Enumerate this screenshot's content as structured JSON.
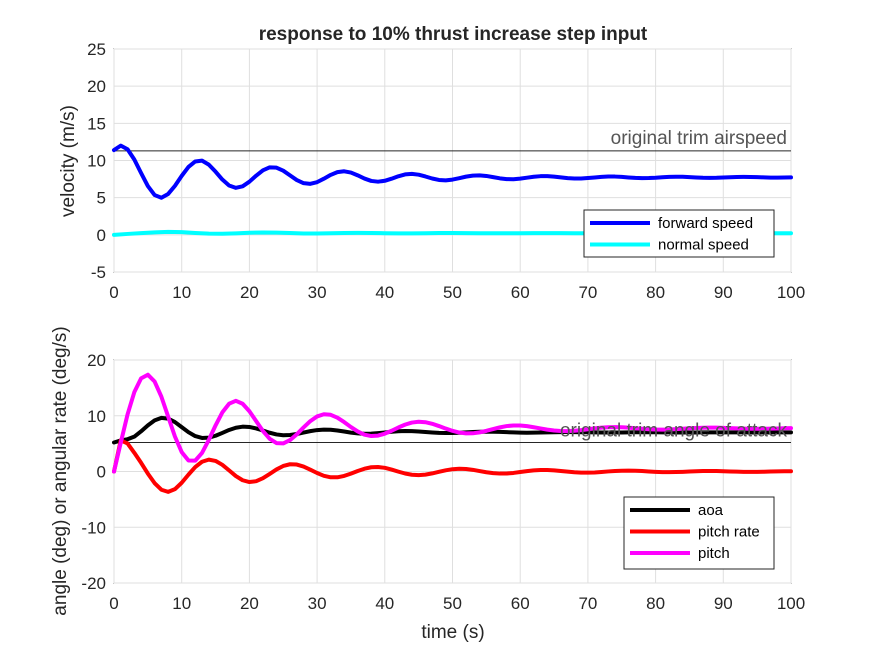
{
  "chart_data": [
    {
      "type": "line",
      "title": "response to 10% thrust increase step input",
      "xlabel": "",
      "ylabel": "velocity (m/s)",
      "xlim": [
        0,
        100
      ],
      "ylim": [
        -5,
        25
      ],
      "xticks": [
        0,
        10,
        20,
        30,
        40,
        50,
        60,
        70,
        80,
        90,
        100
      ],
      "yticks": [
        -5,
        0,
        5,
        10,
        15,
        20,
        25
      ],
      "grid": true,
      "legend_position": "bottom-right",
      "reference_line": {
        "y": 11.3,
        "label": "original trim airspeed",
        "color": "#555555"
      },
      "series": [
        {
          "name": "forward speed",
          "color": "#0000ff",
          "x": [
            0,
            1,
            2,
            3,
            4,
            5,
            6,
            7,
            8,
            9,
            10,
            11,
            12,
            13,
            14,
            15,
            16,
            17,
            18,
            19,
            20,
            21,
            22,
            23,
            24,
            25,
            26,
            27,
            28,
            29,
            30,
            31,
            32,
            33,
            34,
            35,
            36,
            37,
            38,
            39,
            40,
            41,
            42,
            43,
            44,
            45,
            46,
            47,
            48,
            49,
            50,
            51,
            52,
            53,
            54,
            55,
            56,
            57,
            58,
            59,
            60,
            61,
            62,
            63,
            64,
            65,
            66,
            67,
            68,
            69,
            70,
            71,
            72,
            73,
            74,
            75,
            76,
            77,
            78,
            79,
            80,
            81,
            82,
            83,
            84,
            85,
            86,
            87,
            88,
            89,
            90,
            91,
            92,
            93,
            94,
            95,
            96,
            97,
            98,
            99,
            100
          ],
          "values": [
            11.4,
            12.0,
            11.51,
            10.14,
            8.32,
            6.56,
            5.35,
            4.99,
            5.5,
            6.59,
            7.93,
            9.13,
            9.87,
            9.98,
            9.45,
            8.5,
            7.44,
            6.64,
            6.32,
            6.53,
            7.15,
            7.96,
            8.68,
            9.08,
            9.04,
            8.63,
            8.0,
            7.37,
            6.95,
            6.86,
            7.09,
            7.55,
            8.06,
            8.44,
            8.55,
            8.38,
            8.0,
            7.57,
            7.25,
            7.15,
            7.27,
            7.55,
            7.88,
            8.13,
            8.2,
            8.09,
            7.85,
            7.58,
            7.38,
            7.33,
            7.43,
            7.62,
            7.83,
            7.97,
            8.0,
            7.92,
            7.76,
            7.6,
            7.49,
            7.48,
            7.56,
            7.69,
            7.81,
            7.89,
            7.9,
            7.83,
            7.73,
            7.63,
            7.58,
            7.58,
            7.64,
            7.72,
            7.8,
            7.84,
            7.84,
            7.79,
            7.72,
            7.66,
            7.63,
            7.64,
            7.68,
            7.74,
            7.79,
            7.81,
            7.81,
            7.77,
            7.72,
            7.68,
            7.67,
            7.68,
            7.71,
            7.75,
            7.78,
            7.79,
            7.78,
            7.76,
            7.73,
            7.7,
            7.7,
            7.71,
            7.73
          ]
        },
        {
          "name": "normal speed",
          "color": "#00ffff",
          "x": [
            0,
            2,
            4,
            6,
            8,
            10,
            12,
            14,
            16,
            18,
            20,
            22,
            24,
            26,
            28,
            30,
            32,
            34,
            36,
            38,
            40,
            42,
            44,
            46,
            48,
            50,
            52,
            54,
            56,
            58,
            60,
            62,
            64,
            66,
            68,
            70,
            72,
            74,
            76,
            78,
            80,
            82,
            84,
            86,
            88,
            90,
            92,
            94,
            96,
            98,
            100
          ],
          "values": [
            0.0,
            0.12,
            0.23,
            0.33,
            0.39,
            0.36,
            0.25,
            0.16,
            0.15,
            0.2,
            0.28,
            0.32,
            0.3,
            0.24,
            0.18,
            0.18,
            0.21,
            0.25,
            0.27,
            0.25,
            0.22,
            0.2,
            0.2,
            0.22,
            0.24,
            0.24,
            0.23,
            0.22,
            0.21,
            0.21,
            0.22,
            0.23,
            0.23,
            0.23,
            0.22,
            0.22,
            0.22,
            0.22,
            0.23,
            0.23,
            0.22,
            0.22,
            0.22,
            0.22,
            0.22,
            0.22,
            0.22,
            0.22,
            0.22,
            0.22,
            0.22
          ]
        }
      ]
    },
    {
      "type": "line",
      "title": "",
      "xlabel": "time (s)",
      "ylabel": "angle (deg) or angular rate (deg/s)",
      "xlim": [
        0,
        100
      ],
      "ylim": [
        -20,
        20
      ],
      "xticks": [
        0,
        10,
        20,
        30,
        40,
        50,
        60,
        70,
        80,
        90,
        100
      ],
      "yticks": [
        -20,
        -10,
        0,
        10,
        20
      ],
      "grid": true,
      "legend_position": "bottom-right",
      "reference_line": {
        "y": 5.2,
        "label": "original trim angle of attack",
        "color": "#555555"
      },
      "series": [
        {
          "name": "aoa",
          "color": "#000000",
          "x": [
            0,
            1,
            2,
            3,
            4,
            5,
            6,
            7,
            8,
            9,
            10,
            11,
            12,
            13,
            14,
            15,
            16,
            17,
            18,
            19,
            20,
            21,
            22,
            23,
            24,
            25,
            26,
            27,
            28,
            29,
            30,
            31,
            32,
            33,
            34,
            35,
            36,
            37,
            38,
            39,
            40,
            41,
            42,
            43,
            44,
            45,
            46,
            47,
            48,
            49,
            50,
            51,
            52,
            53,
            54,
            55,
            56,
            57,
            58,
            59,
            60,
            61,
            62,
            63,
            64,
            65,
            66,
            67,
            68,
            69,
            70,
            71,
            72,
            73,
            74,
            75,
            76,
            77,
            78,
            79,
            80,
            81,
            82,
            83,
            84,
            85,
            86,
            87,
            88,
            89,
            90,
            91,
            92,
            93,
            94,
            95,
            96,
            97,
            98,
            99,
            100
          ],
          "values": [
            5.2,
            5.57,
            5.79,
            6.25,
            7.2,
            8.27,
            9.17,
            9.61,
            9.48,
            8.87,
            7.96,
            7.05,
            6.35,
            6.02,
            6.07,
            6.41,
            6.92,
            7.45,
            7.85,
            8.04,
            7.99,
            7.73,
            7.35,
            6.95,
            6.65,
            6.51,
            6.55,
            6.73,
            6.98,
            7.24,
            7.43,
            7.52,
            7.49,
            7.36,
            7.17,
            6.98,
            6.84,
            6.77,
            6.79,
            6.88,
            7.0,
            7.13,
            7.22,
            7.26,
            7.24,
            7.18,
            7.09,
            7.0,
            6.93,
            6.9,
            6.91,
            6.96,
            7.02,
            7.08,
            7.12,
            7.14,
            7.13,
            7.1,
            7.06,
            7.01,
            6.98,
            6.96,
            6.97,
            6.99,
            7.02,
            7.05,
            7.07,
            7.08,
            7.07,
            7.05,
            7.03,
            7.01,
            6.99,
            6.99,
            6.99,
            7.0,
            7.02,
            7.03,
            7.04,
            7.04,
            7.03,
            7.02,
            7.01,
            7.0,
            7.0,
            7.0,
            7.0,
            7.01,
            7.02,
            7.02,
            7.02,
            7.02,
            7.01,
            7.01,
            7.0,
            7.0,
            7.0,
            7.0,
            7.01,
            7.01,
            7.01
          ]
        },
        {
          "name": "pitch rate",
          "color": "#ff0000",
          "x": [
            0,
            1,
            2,
            3,
            4,
            5,
            6,
            7,
            8,
            9,
            10,
            11,
            12,
            13,
            14,
            15,
            16,
            17,
            18,
            19,
            20,
            21,
            22,
            23,
            24,
            25,
            26,
            27,
            28,
            29,
            30,
            31,
            32,
            33,
            34,
            35,
            36,
            37,
            38,
            39,
            40,
            41,
            42,
            43,
            44,
            45,
            46,
            47,
            48,
            49,
            50,
            51,
            52,
            53,
            54,
            55,
            56,
            57,
            58,
            59,
            60,
            61,
            62,
            63,
            64,
            65,
            66,
            67,
            68,
            69,
            70,
            71,
            72,
            73,
            74,
            75,
            76,
            77,
            78,
            79,
            80,
            81,
            82,
            83,
            84,
            85,
            86,
            87,
            88,
            89,
            90,
            91,
            92,
            93,
            94,
            95,
            96,
            97,
            98,
            99,
            100
          ],
          "values": [
            0.0,
            5.6,
            5.03,
            3.36,
            1.56,
            -0.38,
            -2.09,
            -3.27,
            -3.65,
            -3.17,
            -2.02,
            -0.56,
            0.8,
            1.75,
            2.13,
            1.9,
            1.2,
            0.2,
            -0.82,
            -1.57,
            -1.89,
            -1.74,
            -1.2,
            -0.43,
            0.37,
            0.99,
            1.3,
            1.25,
            0.89,
            0.33,
            -0.27,
            -0.77,
            -1.04,
            -1.04,
            -0.79,
            -0.38,
            0.09,
            0.5,
            0.76,
            0.81,
            0.66,
            0.35,
            -0.02,
            -0.36,
            -0.58,
            -0.65,
            -0.56,
            -0.34,
            -0.06,
            0.21,
            0.41,
            0.49,
            0.45,
            0.3,
            0.08,
            -0.13,
            -0.29,
            -0.37,
            -0.36,
            -0.26,
            -0.09,
            0.07,
            0.2,
            0.27,
            0.27,
            0.21,
            0.09,
            -0.03,
            -0.14,
            -0.2,
            -0.21,
            -0.17,
            -0.09,
            0.01,
            0.09,
            0.14,
            0.16,
            0.13,
            0.08,
            0.0,
            -0.06,
            -0.11,
            -0.12,
            -0.1,
            -0.06,
            -0.01,
            0.04,
            0.08,
            0.09,
            0.08,
            0.05,
            0.01,
            -0.03,
            -0.06,
            -0.07,
            -0.06,
            -0.04,
            -0.01,
            0.02,
            0.04,
            0.05
          ]
        },
        {
          "name": "pitch",
          "color": "#ff00ff",
          "x": [
            0,
            1,
            2,
            3,
            4,
            5,
            6,
            7,
            8,
            9,
            10,
            11,
            12,
            13,
            14,
            15,
            16,
            17,
            18,
            19,
            20,
            21,
            22,
            23,
            24,
            25,
            26,
            27,
            28,
            29,
            30,
            31,
            32,
            33,
            34,
            35,
            36,
            37,
            38,
            39,
            40,
            41,
            42,
            43,
            44,
            45,
            46,
            47,
            48,
            49,
            50,
            51,
            52,
            53,
            54,
            55,
            56,
            57,
            58,
            59,
            60,
            61,
            62,
            63,
            64,
            65,
            66,
            67,
            68,
            69,
            70,
            71,
            72,
            73,
            74,
            75,
            76,
            77,
            78,
            79,
            80,
            81,
            82,
            83,
            84,
            85,
            86,
            87,
            88,
            89,
            90,
            91,
            92,
            93,
            94,
            95,
            96,
            97,
            98,
            99,
            100
          ],
          "values": [
            0.0,
            5.18,
            10.23,
            14.23,
            16.71,
            17.36,
            16.14,
            13.41,
            9.85,
            6.28,
            3.48,
            1.97,
            1.95,
            3.33,
            5.65,
            8.27,
            10.6,
            12.16,
            12.68,
            12.15,
            10.81,
            9.04,
            7.26,
            5.87,
            5.1,
            5.04,
            5.63,
            6.67,
            7.9,
            9.04,
            9.88,
            10.27,
            10.17,
            9.65,
            8.86,
            7.97,
            7.18,
            6.61,
            6.36,
            6.44,
            6.79,
            7.31,
            7.89,
            8.41,
            8.78,
            8.92,
            8.84,
            8.56,
            8.15,
            7.7,
            7.29,
            6.99,
            6.84,
            6.85,
            7.02,
            7.29,
            7.61,
            7.92,
            8.15,
            8.26,
            8.25,
            8.14,
            7.94,
            7.72,
            7.51,
            7.35,
            7.26,
            7.25,
            7.31,
            7.43,
            7.58,
            7.74,
            7.87,
            7.94,
            7.96,
            7.93,
            7.86,
            7.76,
            7.66,
            7.58,
            7.53,
            7.52,
            7.54,
            7.6,
            7.67,
            7.75,
            7.81,
            7.85,
            7.87,
            7.86,
            7.83,
            7.79,
            7.74,
            7.7,
            7.67,
            7.66,
            7.66,
            7.68,
            7.72,
            7.75,
            7.78
          ]
        }
      ]
    }
  ]
}
